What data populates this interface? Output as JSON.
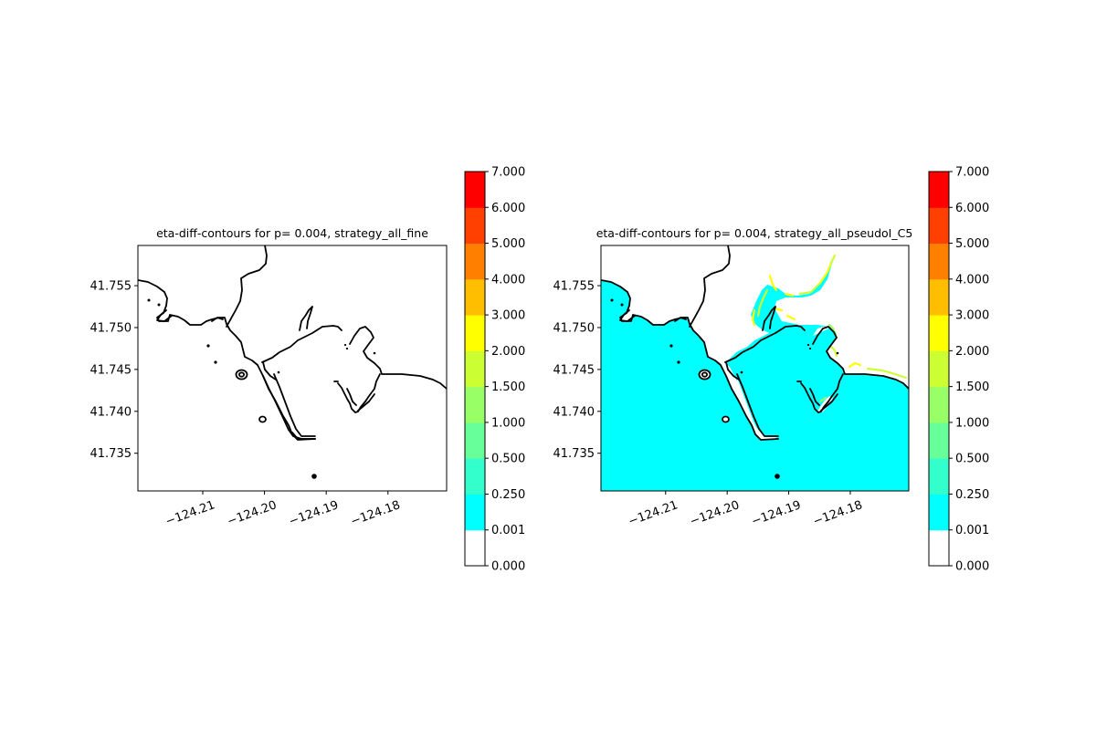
{
  "chart_data": [
    {
      "type": "heatmap",
      "title": "eta-diff-contours for p= 0.004, strategy_all_fine",
      "xlabel": "",
      "ylabel": "",
      "x_ticks": [
        "−124.21",
        "−124.20",
        "−124.19",
        "−124.18"
      ],
      "x_tick_values": [
        -124.21,
        -124.2,
        -124.19,
        -124.18
      ],
      "y_ticks": [
        "41.735",
        "41.740",
        "41.745",
        "41.750",
        "41.755"
      ],
      "y_tick_values": [
        41.735,
        41.74,
        41.745,
        41.75,
        41.755
      ],
      "xlim": [
        -124.2205,
        -124.1705
      ],
      "ylim": [
        41.7305,
        41.7598
      ],
      "fill_level": "none",
      "colorbar": {
        "levels": [
          "0.000",
          "0.001",
          "0.250",
          "0.500",
          "1.000",
          "1.500",
          "2.000",
          "3.000",
          "4.000",
          "5.000",
          "6.000",
          "7.000"
        ],
        "colors": [
          "#ffffff",
          "#00ffff",
          "#33ffcc",
          "#66ff99",
          "#99ff66",
          "#ccff33",
          "#ffff00",
          "#ffbf00",
          "#ff8000",
          "#ff4000",
          "#ff0000"
        ]
      }
    },
    {
      "type": "heatmap",
      "title": "eta-diff-contours for p= 0.004, strategy_all_pseudoI_C5",
      "xlabel": "",
      "ylabel": "",
      "x_ticks": [
        "−124.21",
        "−124.20",
        "−124.19",
        "−124.18"
      ],
      "x_tick_values": [
        -124.21,
        -124.2,
        -124.19,
        -124.18
      ],
      "y_ticks": [
        "41.735",
        "41.740",
        "41.745",
        "41.750",
        "41.755"
      ],
      "y_tick_values": [
        41.735,
        41.74,
        41.745,
        41.75,
        41.755
      ],
      "xlim": [
        -124.2205,
        -124.1705
      ],
      "ylim": [
        41.7305,
        41.7598
      ],
      "fill_level": "0.001-0.250",
      "edge_levels": [
        "0.250-0.500",
        "0.500-1.000",
        "1.000-1.500",
        "1.500-2.000",
        "2.000-3.000"
      ],
      "colorbar": {
        "levels": [
          "0.000",
          "0.001",
          "0.250",
          "0.500",
          "1.000",
          "1.500",
          "2.000",
          "3.000",
          "4.000",
          "5.000",
          "6.000",
          "7.000"
        ],
        "colors": [
          "#ffffff",
          "#00ffff",
          "#33ffcc",
          "#66ff99",
          "#99ff66",
          "#ccff33",
          "#ffff00",
          "#ffbf00",
          "#ff8000",
          "#ff4000",
          "#ff0000"
        ]
      }
    }
  ]
}
